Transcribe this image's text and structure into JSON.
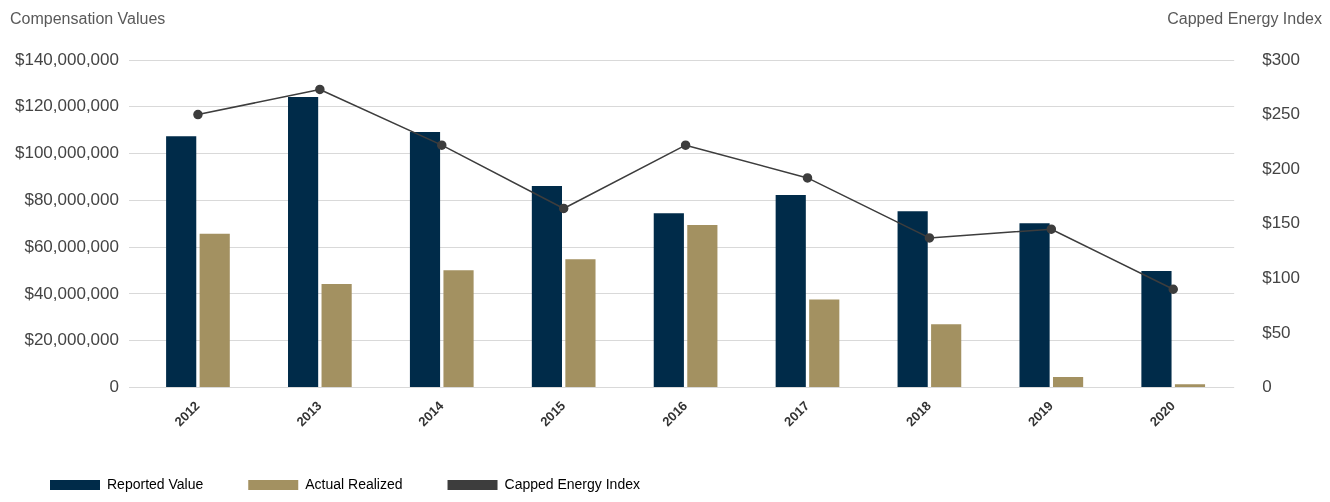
{
  "chart_data": {
    "type": "bar",
    "ylabel": "Compensation Values",
    "y2label": "Capped Energy Index",
    "categories": [
      "2012",
      "2013",
      "2014",
      "2015",
      "2016",
      "2017",
      "2018",
      "2019",
      "2020"
    ],
    "series": [
      {
        "name": "Reported Value",
        "color": "#002b49",
        "values": [
          107400000,
          124200000,
          109200000,
          86100000,
          74500000,
          82300000,
          75400000,
          70200000,
          49800000
        ]
      },
      {
        "name": "Actual Realized",
        "color": "#a39161",
        "values": [
          65700000,
          44200000,
          50100000,
          54800000,
          69500000,
          37600000,
          27000000,
          4500000,
          1400000
        ]
      },
      {
        "name": "Capped Energy Index",
        "type": "line",
        "axis": "y2",
        "color": "#3d3d3d",
        "values": [
          250,
          273,
          222,
          164,
          222,
          192,
          137,
          145,
          90
        ]
      }
    ],
    "ylim": [
      0,
      140000000
    ],
    "yticks": [
      {
        "value": 0,
        "label": "0"
      },
      {
        "value": 20000000,
        "label": "$20,000,000"
      },
      {
        "value": 40000000,
        "label": "$40,000,000"
      },
      {
        "value": 60000000,
        "label": "$60,000,000"
      },
      {
        "value": 80000000,
        "label": "$80,000,000"
      },
      {
        "value": 100000000,
        "label": "$100,000,000"
      },
      {
        "value": 120000000,
        "label": "$120,000,000"
      },
      {
        "value": 140000000,
        "label": "$140,000,000"
      }
    ],
    "y2lim": [
      0,
      300
    ],
    "y2ticks": [
      {
        "value": 0,
        "label": "0"
      },
      {
        "value": 50,
        "label": "$50"
      },
      {
        "value": 100,
        "label": "$100"
      },
      {
        "value": 150,
        "label": "$150"
      },
      {
        "value": 200,
        "label": "$200"
      },
      {
        "value": 250,
        "label": "$250"
      },
      {
        "value": 300,
        "label": "$300"
      }
    ],
    "grid": "y",
    "legend": "bottom",
    "marker": "circle",
    "line_style": "solid"
  }
}
